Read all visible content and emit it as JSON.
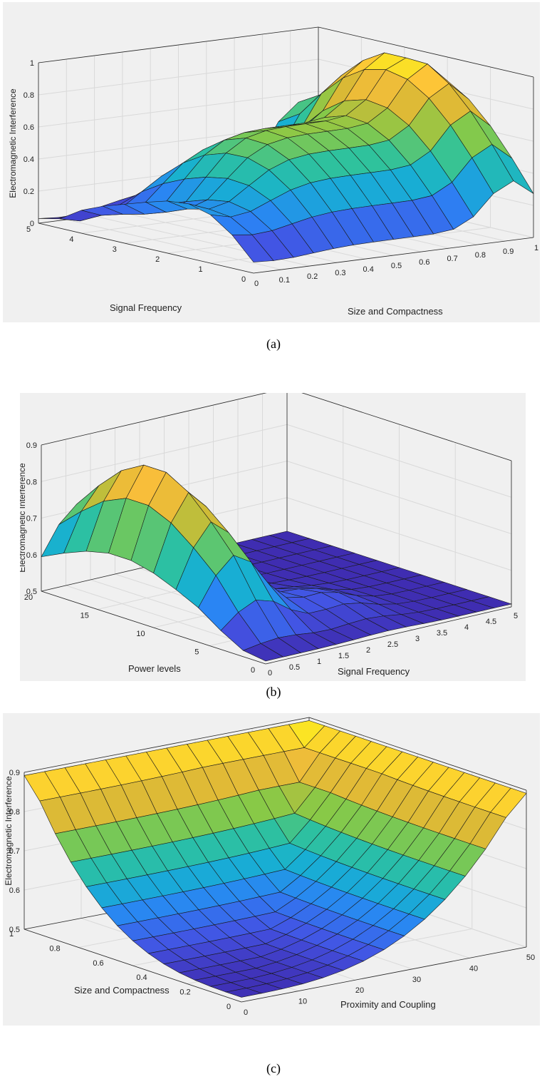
{
  "chart_data": [
    {
      "type": "surface",
      "panel_label": "(a)",
      "zlabel": "Electromagnetic Interference",
      "xlabel": "Size and Compactness",
      "ylabel": "Signal Frequency",
      "x_ticks": [
        "0",
        "0.1",
        "0.2",
        "0.3",
        "0.4",
        "0.5",
        "0.6",
        "0.7",
        "0.8",
        "0.9",
        "1"
      ],
      "y_ticks": [
        "0",
        "1",
        "2",
        "3",
        "4",
        "5"
      ],
      "z_ticks": [
        "0",
        "0.2",
        "0.4",
        "0.6",
        "0.8",
        "1"
      ],
      "xlim": [
        0,
        1
      ],
      "ylim": [
        0,
        5
      ],
      "zlim": [
        0,
        1
      ],
      "grid": true,
      "colormap": [
        "#3e26a8",
        "#4353e3",
        "#2b83f4",
        "#17b0d2",
        "#2fc29c",
        "#88c947",
        "#d8b935",
        "#fdbf3b",
        "#f9fb15"
      ]
    },
    {
      "type": "surface",
      "panel_label": "(b)",
      "zlabel": "Electromagnetic Interference",
      "xlabel": "Signal Frequency",
      "ylabel": "Power levels",
      "x_ticks": [
        "0",
        "0.5",
        "1",
        "1.5",
        "2",
        "2.5",
        "3",
        "3.5",
        "4",
        "4.5",
        "5"
      ],
      "y_ticks": [
        "0",
        "5",
        "10",
        "15",
        "20"
      ],
      "z_ticks": [
        "0.5",
        "0.6",
        "0.7",
        "0.8",
        "0.9"
      ],
      "xlim": [
        0,
        5
      ],
      "ylim": [
        0,
        20
      ],
      "zlim": [
        0.5,
        0.9
      ],
      "grid": true,
      "colormap": [
        "#3e26a8",
        "#4353e3",
        "#2b83f4",
        "#17b0d2",
        "#2fc29c",
        "#88c947",
        "#d8b935",
        "#fdbf3b",
        "#f9fb15"
      ]
    },
    {
      "type": "surface",
      "panel_label": "(c)",
      "zlabel": "Electromagnetic Interference",
      "xlabel": "Proximity and Coupling",
      "ylabel": "Size and Compactness",
      "x_ticks": [
        "0",
        "10",
        "20",
        "30",
        "40",
        "50"
      ],
      "y_ticks": [
        "0.2",
        "0.4",
        "0.6",
        "0.8",
        "1"
      ],
      "y_tick_zero": "0",
      "z_ticks": [
        "0.5",
        "0.6",
        "0.7",
        "0.8",
        "0.9"
      ],
      "xlim": [
        0,
        50
      ],
      "ylim": [
        0,
        1
      ],
      "zlim": [
        0.5,
        0.9
      ],
      "grid": true,
      "colormap": [
        "#3e26a8",
        "#4353e3",
        "#2b83f4",
        "#17b0d2",
        "#2fc29c",
        "#88c947",
        "#d8b935",
        "#fdbf3b",
        "#f9fb15"
      ]
    }
  ]
}
